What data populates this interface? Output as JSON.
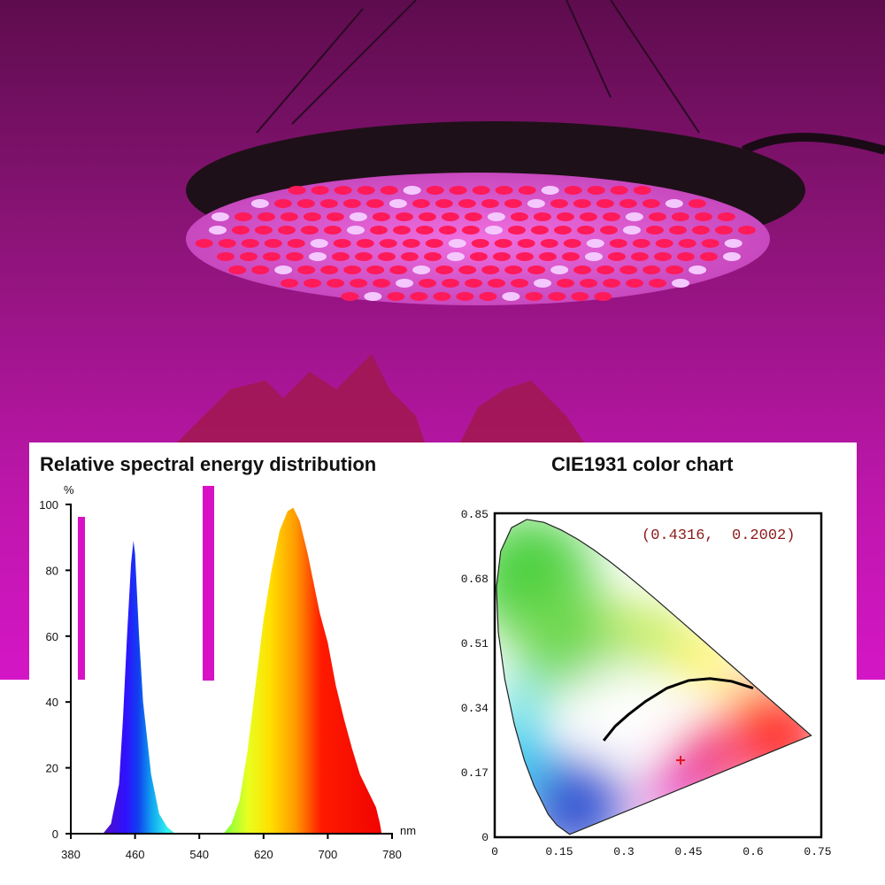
{
  "colors": {
    "background_magenta": "#c414b4",
    "lamp_rim": "#1e1018",
    "led_red": "#ff1a5a",
    "led_white": "#f4c8ff"
  },
  "chart_data": [
    {
      "type": "area",
      "title": "Relative spectral energy distribution",
      "ylabel": "%",
      "xlabel": "nm",
      "xlim": [
        380,
        780
      ],
      "ylim": [
        0,
        100
      ],
      "xticks": [
        "380",
        "460",
        "540",
        "620",
        "700",
        "780"
      ],
      "yticks": [
        "0",
        "20",
        "40",
        "60",
        "80",
        "100"
      ],
      "grid": false,
      "fill": "wavelength-colored spectrum",
      "series": [
        {
          "x": [
            420,
            430,
            440,
            445,
            450,
            455,
            458,
            460,
            465,
            470,
            480,
            490,
            500,
            510
          ],
          "y": [
            0,
            3,
            15,
            35,
            60,
            82,
            89,
            85,
            60,
            40,
            18,
            6,
            2,
            0
          ]
        },
        {
          "x": [
            570,
            580,
            590,
            600,
            610,
            620,
            630,
            640,
            650,
            657,
            665,
            675,
            690,
            700,
            710,
            720,
            730,
            740,
            750,
            760,
            765,
            767
          ],
          "y": [
            0,
            3,
            10,
            25,
            45,
            65,
            80,
            92,
            98,
            99,
            95,
            85,
            67,
            58,
            45,
            35,
            26,
            18,
            13,
            8,
            3,
            0
          ]
        }
      ]
    },
    {
      "type": "scatter",
      "title": "CIE1931 color chart",
      "xlim": [
        0,
        0.75
      ],
      "ylim": [
        0,
        0.85
      ],
      "xticks": [
        "0",
        "0.15",
        "0.3",
        "0.45",
        "0.6",
        "0.75"
      ],
      "yticks": [
        "0",
        "0.17",
        "0.34",
        "0.51",
        "0.68",
        "0.85"
      ],
      "grid": false,
      "point": {
        "x": 0.4316,
        "y": 0.2002,
        "label": "(0.4316,  0.2002)",
        "color": "#e0141e"
      },
      "planckian_locus": {
        "x": [
          0.253,
          0.28,
          0.31,
          0.35,
          0.4,
          0.45,
          0.5,
          0.55,
          0.6
        ],
        "y": [
          0.252,
          0.29,
          0.32,
          0.355,
          0.39,
          0.41,
          0.415,
          0.408,
          0.39
        ]
      },
      "spectral_locus": {
        "x": [
          0.1741,
          0.144,
          0.1241,
          0.0913,
          0.0687,
          0.0454,
          0.0235,
          0.0082,
          0.0039,
          0.0139,
          0.0389,
          0.0743,
          0.1142,
          0.1547,
          0.1929,
          0.2296,
          0.2658,
          0.3016,
          0.3373,
          0.3731,
          0.4087,
          0.4441,
          0.4788,
          0.5125,
          0.5448,
          0.5752,
          0.6029,
          0.627,
          0.6482,
          0.6658,
          0.6915,
          0.7347
        ],
        "y": [
          0.005,
          0.0297,
          0.0578,
          0.1327,
          0.2007,
          0.295,
          0.4127,
          0.5384,
          0.6548,
          0.7502,
          0.812,
          0.8338,
          0.8262,
          0.8059,
          0.7816,
          0.7543,
          0.7243,
          0.6923,
          0.6589,
          0.6245,
          0.5896,
          0.5547,
          0.5202,
          0.4866,
          0.4544,
          0.4242,
          0.3965,
          0.3725,
          0.3514,
          0.334,
          0.3083,
          0.2653
        ]
      }
    }
  ]
}
